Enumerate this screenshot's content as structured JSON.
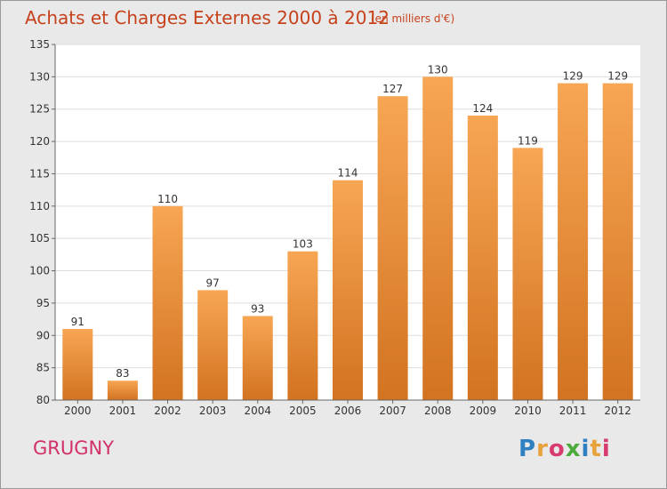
{
  "title": "Achats et Charges Externes 2000 à 2012",
  "subtitle": "(en milliers d'€)",
  "commune": "GRUGNY",
  "logo": {
    "text": "Proxiti",
    "letters": [
      {
        "ch": "P",
        "color": "#2f7fc1"
      },
      {
        "ch": "r",
        "color": "#e8a23a"
      },
      {
        "ch": "o",
        "color": "#d83c6e"
      },
      {
        "ch": "x",
        "color": "#4caa3c"
      },
      {
        "ch": "i",
        "color": "#2f7fc1"
      },
      {
        "ch": "t",
        "color": "#e8a23a"
      },
      {
        "ch": "i",
        "color": "#d83c6e"
      }
    ]
  },
  "colors": {
    "bar_light": "#f7a654",
    "bar_dark": "#d27320",
    "title": "#c6421c",
    "commune": "#d2306a"
  },
  "chart_data": {
    "type": "bar",
    "categories": [
      "2000",
      "2001",
      "2002",
      "2003",
      "2004",
      "2005",
      "2006",
      "2007",
      "2008",
      "2009",
      "2010",
      "2011",
      "2012"
    ],
    "values": [
      91,
      83,
      110,
      97,
      93,
      103,
      114,
      127,
      130,
      124,
      119,
      129,
      129
    ],
    "ylim": [
      80,
      135
    ],
    "yticks": [
      80,
      85,
      90,
      95,
      100,
      105,
      110,
      115,
      120,
      125,
      130,
      135
    ],
    "grid": true,
    "xlabel": "",
    "ylabel": ""
  }
}
